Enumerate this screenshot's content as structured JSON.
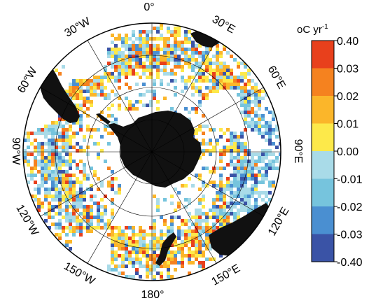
{
  "map": {
    "projection": "south-polar-stereographic",
    "longitude_labels": {
      "top": "0°",
      "top_right": "30°E",
      "right_upper": "60°E",
      "right": "90°E",
      "right_lower": "120°E",
      "bottom_right": "150°E",
      "bottom": "180°",
      "bottom_left": "150°W",
      "left_lower": "120°W",
      "left": "90°W",
      "left_upper": "60°W",
      "top_left": "30°W"
    },
    "land_color": "#111111",
    "grid_color": "#000000"
  },
  "colorbar": {
    "unit_base": "oC yr",
    "unit_superscript": "-1",
    "tick_labels": [
      "0.40",
      "0.03",
      "0.02",
      "0.01",
      "0.00",
      "-0.01",
      "-0.02",
      "-0.03",
      "-0.40"
    ],
    "bins": [
      {
        "range": "0.03 to 0.40",
        "color": "#e8401c"
      },
      {
        "range": "0.02 to 0.03",
        "color": "#f5821f"
      },
      {
        "range": "0.01 to 0.02",
        "color": "#fbb62a"
      },
      {
        "range": "0.00 to 0.01",
        "color": "#fde94a"
      },
      {
        "range": "-0.01 to 0.00",
        "color": "#a9dbe8"
      },
      {
        "range": "-0.02 to -0.01",
        "color": "#76c4dd"
      },
      {
        "range": "-0.03 to -0.02",
        "color": "#4a8fd1"
      },
      {
        "range": "-0.40 to -0.03",
        "color": "#3a53a6"
      }
    ]
  }
}
